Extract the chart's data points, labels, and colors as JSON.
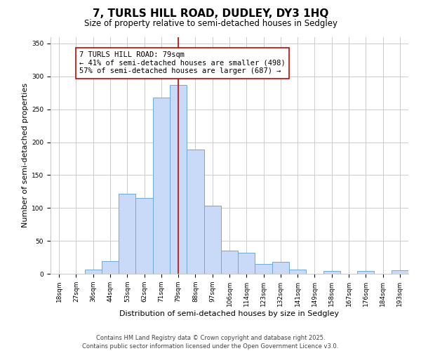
{
  "title": "7, TURLS HILL ROAD, DUDLEY, DY3 1HQ",
  "subtitle": "Size of property relative to semi-detached houses in Sedgley",
  "xlabel": "Distribution of semi-detached houses by size in Sedgley",
  "ylabel": "Number of semi-detached properties",
  "categories": [
    "18sqm",
    "27sqm",
    "36sqm",
    "44sqm",
    "53sqm",
    "62sqm",
    "71sqm",
    "79sqm",
    "88sqm",
    "97sqm",
    "106sqm",
    "114sqm",
    "123sqm",
    "132sqm",
    "141sqm",
    "149sqm",
    "158sqm",
    "167sqm",
    "176sqm",
    "184sqm",
    "193sqm"
  ],
  "values": [
    0,
    0,
    6,
    19,
    122,
    115,
    268,
    287,
    189,
    103,
    35,
    32,
    15,
    18,
    6,
    0,
    4,
    0,
    4,
    0,
    5
  ],
  "bar_color": "#c9daf8",
  "bar_edge_color": "#6fa8dc",
  "highlight_index": 7,
  "highlight_line_color": "#cc0000",
  "annotation_line1": "7 TURLS HILL ROAD: 79sqm",
  "annotation_line2": "← 41% of semi-detached houses are smaller (498)",
  "annotation_line3": "57% of semi-detached houses are larger (687) →",
  "annotation_box_color": "#ffffff",
  "annotation_box_edge_color": "#cc0000",
  "ylim": [
    0,
    360
  ],
  "yticks": [
    0,
    50,
    100,
    150,
    200,
    250,
    300,
    350
  ],
  "background_color": "#ffffff",
  "grid_color": "#cccccc",
  "footer_line1": "Contains HM Land Registry data © Crown copyright and database right 2025.",
  "footer_line2": "Contains public sector information licensed under the Open Government Licence v3.0.",
  "title_fontsize": 11,
  "subtitle_fontsize": 8.5,
  "axis_label_fontsize": 8,
  "tick_fontsize": 6.5,
  "annotation_fontsize": 7.5,
  "footer_fontsize": 6
}
